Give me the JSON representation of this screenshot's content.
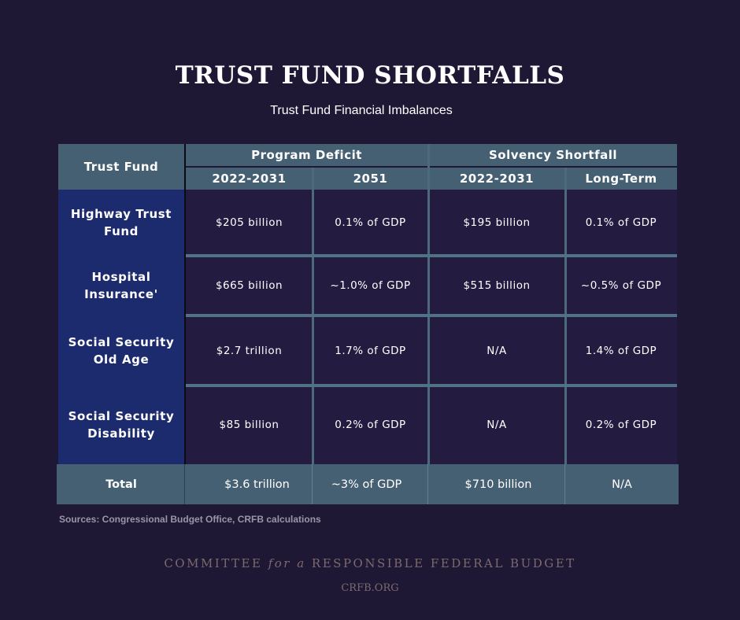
{
  "title": "TRUST FUND SHORTFALLS",
  "subtitle": "Trust Fund Financial Imbalances",
  "table": {
    "row_header": "Trust Fund",
    "groups": [
      "Program Deficit",
      "Solvency Shortfall"
    ],
    "columns": [
      "2022-2031",
      "2051",
      "2022-2031",
      "Long-Term"
    ],
    "rows": [
      {
        "label": "Highway Trust Fund",
        "values": [
          "$205 billion",
          "0.1% of GDP",
          "$195 billion",
          "0.1% of GDP"
        ]
      },
      {
        "label": "Hospital Insurance'",
        "values": [
          "$665 billion",
          "~1.0% of GDP",
          "$515 billion",
          "~0.5% of GDP"
        ]
      },
      {
        "label": "Social Security Old Age",
        "values": [
          "$2.7 trillion",
          "1.7% of GDP",
          "N/A",
          "1.4% of GDP"
        ]
      },
      {
        "label": "Social Security Disability",
        "values": [
          "$85 billion",
          "0.2% of GDP",
          "N/A",
          "0.2% of GDP"
        ]
      }
    ],
    "total": {
      "label": "Total",
      "values": [
        "$3.6 trillion",
        "~3% of GDP",
        "$710 billion",
        "N/A"
      ]
    }
  },
  "sources": "Sources: Congressional Budget Office, CRFB calculations",
  "footer": {
    "org_a": "COMMITTEE ",
    "org_b": "for a",
    "org_c": " RESPONSIBLE FEDERAL BUDGET",
    "url": "CRFB.ORG"
  },
  "colors": {
    "background": "#1e1834",
    "header": "#466073",
    "label_column": "#1c2a6e",
    "cells": "#231b40"
  }
}
